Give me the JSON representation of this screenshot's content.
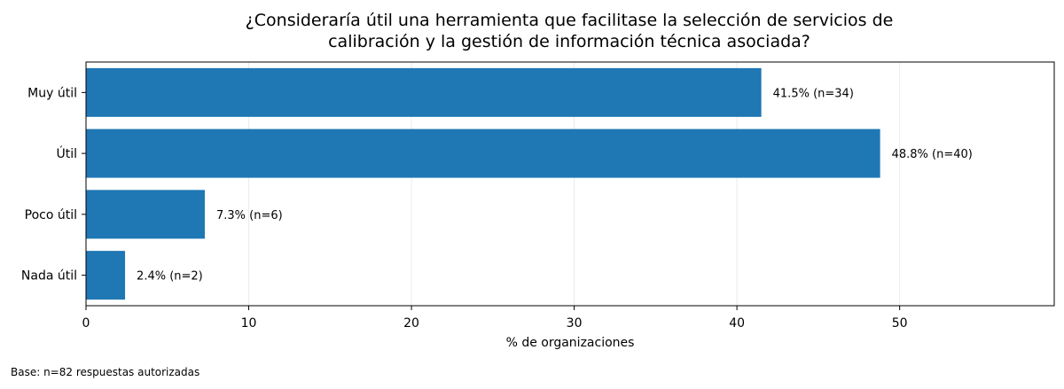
{
  "chart_data": {
    "type": "bar",
    "orientation": "horizontal",
    "title": [
      "¿Consideraría útil una herramienta que facilitase la selección de servicios de",
      "calibración y la gestión de información técnica asociada?"
    ],
    "categories": [
      "Muy útil",
      "Útil",
      "Poco útil",
      "Nada útil"
    ],
    "values": [
      41.5,
      48.8,
      7.3,
      2.4
    ],
    "counts": [
      34,
      40,
      6,
      2
    ],
    "data_labels": [
      "41.5% (n=34)",
      "48.8% (n=40)",
      "7.3% (n=6)",
      "2.4% (n=2)"
    ],
    "xlabel": "% de organizaciones",
    "ylabel": "",
    "xlim": [
      0,
      59.5
    ],
    "xticks": [
      0,
      10,
      20,
      30,
      40,
      50
    ],
    "grid": true,
    "bar_color": "#1f77b4"
  },
  "footnote": "Base: n=82 respuestas autorizadas"
}
